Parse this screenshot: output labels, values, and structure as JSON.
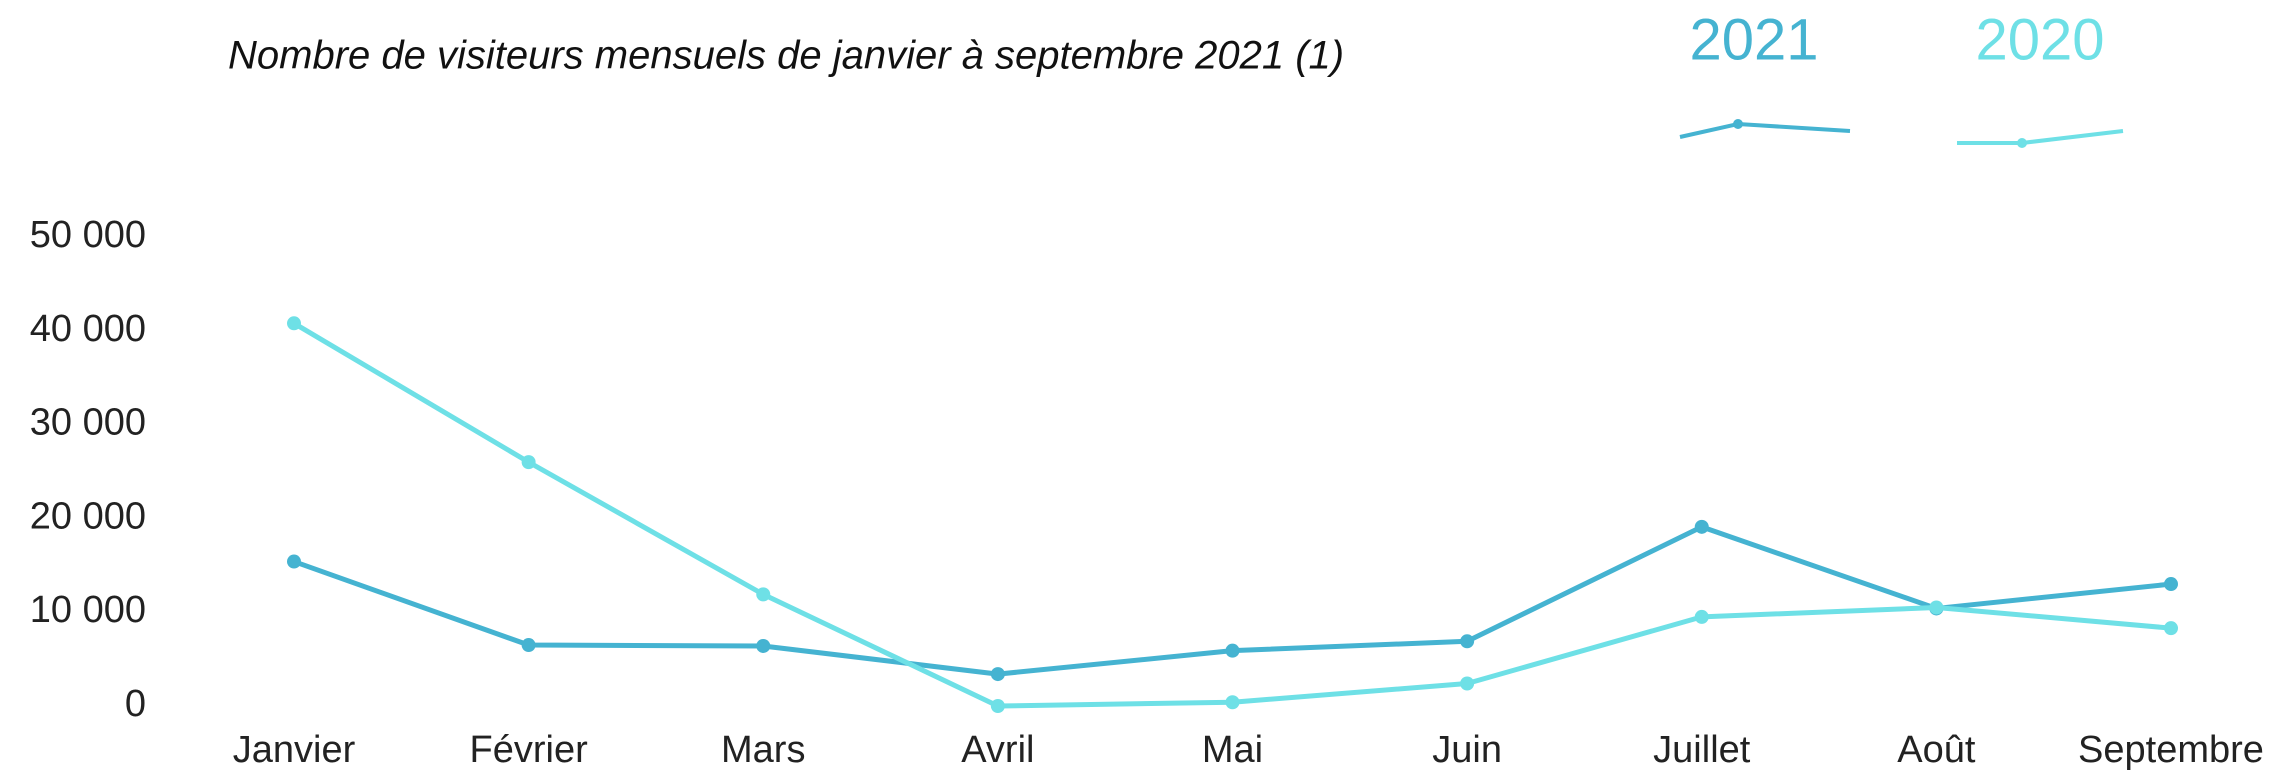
{
  "chart_data": {
    "type": "line",
    "title": "Nombre de visiteurs mensuels de janvier à septembre 2021 (1)",
    "categories": [
      "Janvier",
      "Février",
      "Mars",
      "Avril",
      "Mai",
      "Juin",
      "Juillet",
      "Août",
      "Septembre"
    ],
    "series": [
      {
        "name": "2021",
        "color": "#45b3d1",
        "values": [
          15400,
          6500,
          6400,
          3400,
          5900,
          6900,
          19100,
          10400,
          13000
        ]
      },
      {
        "name": "2020",
        "color": "#6ee0e6",
        "values": [
          40800,
          26000,
          11900,
          0,
          400,
          2400,
          9500,
          10500,
          8300
        ]
      }
    ],
    "ylim": [
      0,
      50000
    ],
    "yticks": [
      0,
      {
        "value": 10000,
        "label": "10 000"
      },
      {
        "value": 20000,
        "label": "20 000"
      },
      {
        "value": 30000,
        "label": "30 000"
      },
      {
        "value": 40000,
        "label": "40 000"
      },
      {
        "value": 50000,
        "label": "50 000"
      }
    ],
    "grid": false
  }
}
